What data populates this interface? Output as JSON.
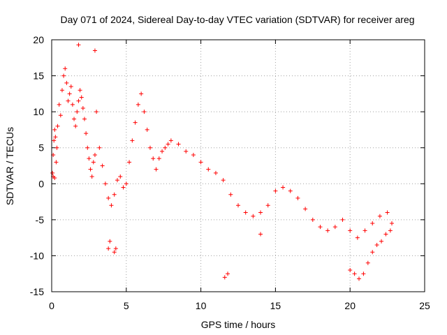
{
  "chart_data": {
    "type": "scatter",
    "title": "Day 071 of 2024, Sidereal Day-to-day VTEC variation (SDTVAR) for receiver areg",
    "xlabel": "GPS time / hours",
    "ylabel": "SDTVAR / TECUs",
    "xlim": [
      0,
      25
    ],
    "ylim": [
      -15,
      20
    ],
    "xticks": [
      0,
      5,
      10,
      15,
      20,
      25
    ],
    "yticks": [
      -15,
      -10,
      -5,
      0,
      5,
      10,
      15,
      20
    ],
    "grid": true,
    "marker": "+",
    "color": "#ff0000",
    "series": [
      {
        "name": "SDTVAR",
        "x": [
          0.05,
          0.1,
          0.15,
          0.2,
          0.25,
          0.3,
          0.35,
          0.4,
          0.5,
          0.6,
          0.7,
          0.8,
          0.9,
          1.0,
          1.1,
          1.2,
          1.3,
          1.4,
          1.5,
          1.6,
          1.7,
          1.8,
          1.9,
          2.0,
          2.1,
          2.2,
          2.3,
          2.4,
          2.5,
          2.6,
          2.7,
          2.8,
          2.9,
          3.0,
          3.2,
          3.4,
          3.6,
          3.8,
          4.0,
          4.2,
          4.4,
          4.6,
          4.8,
          5.0,
          5.2,
          5.4,
          5.6,
          5.8,
          6.0,
          6.2,
          6.4,
          6.6,
          6.8,
          7.0,
          7.2,
          7.4,
          7.6,
          7.8,
          8.0,
          8.5,
          9.0,
          9.5,
          10.0,
          10.5,
          11.0,
          11.5,
          12.0,
          12.5,
          13.0,
          13.5,
          14.0,
          14.5,
          15.0,
          15.5,
          16.0,
          16.5,
          17.0,
          17.5,
          18.0,
          18.5,
          19.0,
          19.5,
          20.0,
          20.5,
          21.0,
          21.5,
          22.0,
          22.5,
          22.8,
          11.6,
          11.8,
          14.0,
          20.0,
          20.3,
          20.6,
          20.9,
          21.2,
          21.5,
          21.8,
          22.1,
          22.4,
          22.7,
          3.8,
          3.9,
          4.2,
          4.3,
          0.1,
          0.2,
          1.8,
          2.9
        ],
        "y": [
          1.5,
          4.0,
          6.0,
          7.5,
          6.5,
          3.0,
          5.0,
          8.0,
          11.0,
          9.5,
          13.0,
          15.0,
          16.0,
          14.0,
          11.5,
          12.5,
          13.5,
          11.0,
          9.0,
          8.0,
          10.0,
          11.5,
          13.0,
          12.0,
          10.5,
          9.0,
          7.0,
          5.0,
          3.5,
          2.0,
          1.0,
          3.0,
          4.0,
          10.0,
          5.0,
          2.5,
          0.0,
          -2.0,
          -3.0,
          -1.5,
          0.5,
          1.0,
          -0.5,
          0.0,
          3.0,
          6.0,
          8.5,
          11.0,
          12.5,
          10.0,
          7.5,
          5.0,
          3.5,
          2.0,
          3.5,
          4.5,
          5.0,
          5.5,
          6.0,
          5.5,
          4.5,
          4.0,
          3.0,
          2.0,
          1.5,
          0.5,
          -1.5,
          -3.0,
          -4.0,
          -4.5,
          -4.0,
          -3.0,
          -1.0,
          -0.5,
          -1.0,
          -2.0,
          -3.5,
          -5.0,
          -6.0,
          -6.5,
          -6.0,
          -5.0,
          -6.5,
          -7.5,
          -6.5,
          -5.5,
          -4.5,
          -4.0,
          -5.5,
          -13.0,
          -12.5,
          -7.0,
          -12.0,
          -12.5,
          -13.2,
          -12.5,
          -11.0,
          -9.5,
          -8.5,
          -8.0,
          -7.0,
          -6.5,
          -9.0,
          -8.0,
          -9.5,
          -9.0,
          1.0,
          0.8,
          19.3,
          18.5
        ]
      }
    ]
  }
}
